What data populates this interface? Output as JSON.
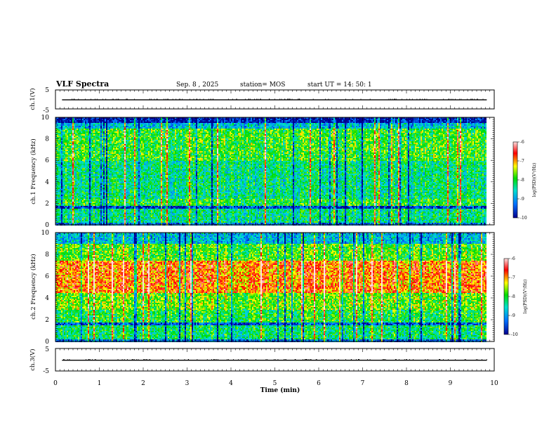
{
  "header": {
    "title": "VLF Spectra",
    "date": "Sep. 8 , 2025",
    "station": "station= MOS",
    "start": "start  UT =   14: 50: 1"
  },
  "colors": {
    "low": "#00008f",
    "mid_low": "#0070ff",
    "mid": "#00e0d0",
    "mid_high": "#00dd00",
    "high": "#ffff00",
    "top": "#ff0000",
    "max": "#ffe0e0"
  },
  "chart_data": [
    {
      "type": "line",
      "name": "ch1-voltage",
      "ylabel": "ch.1(V)",
      "ylim": [
        -5,
        5
      ],
      "yticks": [
        "5",
        "-5"
      ],
      "xlim": [
        0,
        10
      ],
      "constant_level": -0.2,
      "x_end": 9.83
    },
    {
      "type": "heatmap",
      "name": "ch1-spectrogram",
      "ylabel": "ch.1  Frequency (kHz)",
      "xlim": [
        0,
        10
      ],
      "ylim": [
        0,
        10
      ],
      "yticks": [
        "0",
        "2",
        "4",
        "6",
        "8",
        "10"
      ],
      "data_end_min": 9.83,
      "bands_khz": [
        {
          "from": 0.0,
          "to": 0.3,
          "level": 0.2
        },
        {
          "from": 0.3,
          "to": 1.5,
          "level": 0.42
        },
        {
          "from": 1.5,
          "to": 1.8,
          "level": 0.1
        },
        {
          "from": 1.8,
          "to": 2.5,
          "level": 0.5
        },
        {
          "from": 2.5,
          "to": 6.0,
          "level": 0.42
        },
        {
          "from": 6.0,
          "to": 9.0,
          "level": 0.52
        },
        {
          "from": 9.0,
          "to": 9.5,
          "level": 0.3
        },
        {
          "from": 9.5,
          "to": 10.0,
          "level": 0.05
        }
      ],
      "colorbar": {
        "label": "log(PSD)(V²/Hz)",
        "ticks": [
          "-6",
          "-7",
          "-8",
          "-9",
          "-10"
        ],
        "range": [
          -10,
          -6
        ]
      }
    },
    {
      "type": "heatmap",
      "name": "ch2-spectrogram",
      "ylabel": "ch.2  Frequency (kHz)",
      "xlim": [
        0,
        10
      ],
      "ylim": [
        0,
        10
      ],
      "yticks": [
        "0",
        "2",
        "4",
        "6",
        "8",
        "10"
      ],
      "data_end_min": 9.83,
      "bands_khz": [
        {
          "from": 0.0,
          "to": 0.3,
          "level": 0.2
        },
        {
          "from": 0.3,
          "to": 1.5,
          "level": 0.45
        },
        {
          "from": 1.5,
          "to": 1.8,
          "level": 0.15
        },
        {
          "from": 1.8,
          "to": 3.0,
          "level": 0.5
        },
        {
          "from": 3.0,
          "to": 4.5,
          "level": 0.58
        },
        {
          "from": 4.5,
          "to": 7.5,
          "level": 0.78
        },
        {
          "from": 7.5,
          "to": 9.0,
          "level": 0.55
        },
        {
          "from": 9.0,
          "to": 10.0,
          "level": 0.3
        }
      ],
      "colorbar": {
        "label": "log(PSD)(V²/Hz)",
        "ticks": [
          "-6",
          "-7",
          "-8",
          "-9",
          "-10"
        ],
        "range": [
          -10,
          -6
        ]
      }
    },
    {
      "type": "line",
      "name": "ch3-voltage",
      "ylabel": "ch.3(V)",
      "ylim": [
        -5,
        5
      ],
      "yticks": [
        "5",
        "-5"
      ],
      "xlim": [
        0,
        10
      ],
      "constant_level": -0.2,
      "x_end": 9.83
    }
  ],
  "xaxis": {
    "label": "Time  (min)",
    "ticks": [
      "0",
      "1",
      "2",
      "3",
      "4",
      "5",
      "6",
      "7",
      "8",
      "9",
      "10"
    ]
  }
}
